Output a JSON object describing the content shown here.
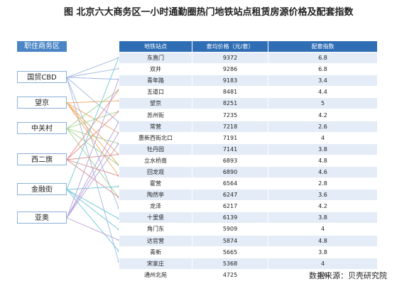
{
  "title": "图  北京六大商务区一小时通勤圈热门地铁站点租赁房源价格及配套指数",
  "districts_header": "职住商务区",
  "districts": [
    "国贸CBD",
    "望京",
    "中关村",
    "西二旗",
    "金融街",
    "亚奥"
  ],
  "table": {
    "headers": [
      "地铁站点",
      "套均价格（元/套）",
      "配套指数"
    ],
    "rows": [
      [
        "东直门",
        "9372",
        "6.8"
      ],
      [
        "双井",
        "9286",
        "6.8"
      ],
      [
        "青年路",
        "9183",
        "3.4"
      ],
      [
        "五道口",
        "8481",
        "4.4"
      ],
      [
        "望京",
        "8251",
        "5"
      ],
      [
        "苏州街",
        "7235",
        "4.2"
      ],
      [
        "常营",
        "7218",
        "2.6"
      ],
      [
        "惠新西街北口",
        "7191",
        "4"
      ],
      [
        "牡丹园",
        "7141",
        "3.8"
      ],
      [
        "立水桥南",
        "6893",
        "4.8"
      ],
      [
        "回龙观",
        "6890",
        "4.6"
      ],
      [
        "霍营",
        "6564",
        "2.8"
      ],
      [
        "陶然亭",
        "6247",
        "3.6"
      ],
      [
        "龙泽",
        "6217",
        "4.2"
      ],
      [
        "十里堡",
        "6139",
        "3.8"
      ],
      [
        "角门东",
        "5909",
        "4"
      ],
      [
        "达官营",
        "5874",
        "4.8"
      ],
      [
        "青新",
        "5665",
        "3.8"
      ],
      [
        "宋家庄",
        "5368",
        "4"
      ],
      [
        "通州北苑",
        "4725",
        "3.6"
      ]
    ]
  },
  "source": "数据来源：贝壳研究院",
  "colors": {
    "header_blue": "#2f6eb5",
    "row_alt": "#e3ecf7",
    "district_border": "#8ab0d8",
    "link_colors": [
      "#9fb8e0",
      "#f0a860",
      "#9fd28a",
      "#e08a8a",
      "#6fc7d6",
      "#b79fd8"
    ]
  },
  "links": [
    [
      0,
      0
    ],
    [
      0,
      1
    ],
    [
      0,
      2
    ],
    [
      0,
      6
    ],
    [
      0,
      14
    ],
    [
      0,
      19
    ],
    [
      1,
      4
    ],
    [
      1,
      7
    ],
    [
      1,
      9
    ],
    [
      1,
      10
    ],
    [
      1,
      11
    ],
    [
      2,
      3
    ],
    [
      2,
      5
    ],
    [
      2,
      8
    ],
    [
      2,
      10
    ],
    [
      2,
      13
    ],
    [
      3,
      3
    ],
    [
      3,
      5
    ],
    [
      3,
      9
    ],
    [
      3,
      11
    ],
    [
      3,
      13
    ],
    [
      4,
      0
    ],
    [
      4,
      12
    ],
    [
      4,
      15
    ],
    [
      4,
      16
    ],
    [
      4,
      18
    ],
    [
      5,
      6
    ],
    [
      5,
      8
    ],
    [
      5,
      17
    ],
    [
      5,
      7
    ],
    [
      5,
      2
    ]
  ]
}
